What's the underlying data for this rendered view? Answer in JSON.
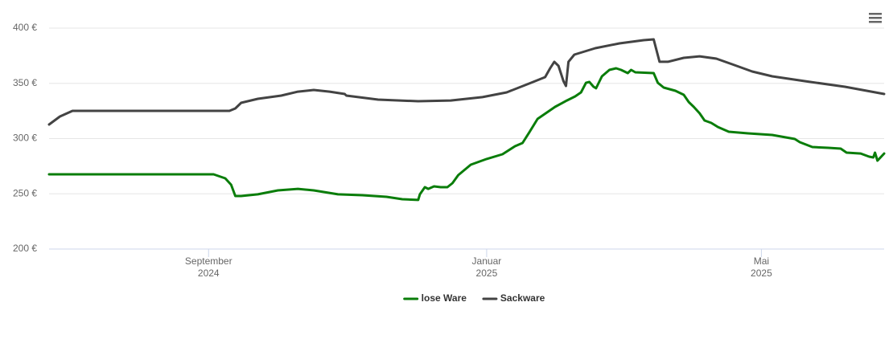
{
  "chart_data": {
    "type": "line",
    "xlim": [
      2024.476,
      2025.476
    ],
    "xticks": [
      {
        "value": 2024.667,
        "label": "September 2024"
      },
      {
        "value": 2025.0,
        "label": "Januar 2025"
      },
      {
        "value": 2025.329,
        "label": "Mai 2025"
      }
    ],
    "ylim": [
      200,
      400
    ],
    "yticks": [
      {
        "value": 200,
        "label": "200 €"
      },
      {
        "value": 250,
        "label": "250 €"
      },
      {
        "value": 300,
        "label": "300 €"
      },
      {
        "value": 350,
        "label": "350 €"
      },
      {
        "value": 400,
        "label": "400 €"
      }
    ],
    "grid": true,
    "legend": "bottom",
    "series": [
      {
        "name": "lose Ware",
        "color": "#0a7d0a",
        "x": [
          2024.476,
          2024.673,
          2024.687,
          2024.694,
          2024.699,
          2024.706,
          2024.726,
          2024.75,
          2024.774,
          2024.793,
          2024.822,
          2024.851,
          2024.88,
          2024.899,
          2024.918,
          2024.92,
          2024.926,
          2024.93,
          2024.937,
          2024.945,
          2024.953,
          2024.959,
          2024.966,
          2024.981,
          2025.0,
          2025.019,
          2025.034,
          2025.043,
          2025.051,
          2025.061,
          2025.082,
          2025.096,
          2025.106,
          2025.113,
          2025.119,
          2025.123,
          2025.128,
          2025.131,
          2025.138,
          2025.147,
          2025.155,
          2025.161,
          2025.169,
          2025.173,
          2025.178,
          2025.2,
          2025.205,
          2025.212,
          2025.226,
          2025.236,
          2025.242,
          2025.248,
          2025.255,
          2025.261,
          2025.269,
          2025.277,
          2025.29,
          2025.313,
          2025.342,
          2025.369,
          2025.375,
          2025.39,
          2025.409,
          2025.424,
          2025.431,
          2025.448,
          2025.458,
          2025.463,
          2025.465,
          2025.468,
          2025.476
        ],
        "values": [
          267.6,
          267.6,
          264,
          258.2,
          248,
          248,
          249.5,
          253.1,
          254.5,
          253.1,
          249.5,
          248.7,
          247.3,
          245.1,
          244.4,
          249.5,
          256,
          254.5,
          256.7,
          256,
          256,
          259.6,
          266.9,
          276.4,
          281.5,
          285.8,
          293.1,
          296,
          305.5,
          317.8,
          328.7,
          334.5,
          338.2,
          341.8,
          350.5,
          351.3,
          346.9,
          345.5,
          356.4,
          362.2,
          363.6,
          362.2,
          359.3,
          362.2,
          360,
          359.3,
          350.5,
          346.2,
          343.3,
          339.6,
          333.1,
          328.7,
          322.9,
          316.4,
          314.2,
          310.5,
          306.2,
          304.7,
          303.3,
          299.6,
          296.7,
          292.4,
          291.6,
          290.9,
          287.3,
          286.5,
          283.6,
          282.9,
          287.3,
          280,
          286.5
        ]
      },
      {
        "name": "Sackware",
        "color": "#434343",
        "x": [
          2024.476,
          2024.489,
          2024.504,
          2024.692,
          2024.699,
          2024.706,
          2024.726,
          2024.754,
          2024.774,
          2024.793,
          2024.812,
          2024.83,
          2024.832,
          2024.87,
          2024.918,
          2024.957,
          2024.995,
          2025.024,
          2025.053,
          2025.07,
          2025.076,
          2025.081,
          2025.086,
          2025.092,
          2025.095,
          2025.098,
          2025.105,
          2025.13,
          2025.159,
          2025.188,
          2025.2,
          2025.207,
          2025.217,
          2025.236,
          2025.255,
          2025.275,
          2025.294,
          2025.318,
          2025.342,
          2025.381,
          2025.429,
          2025.476
        ],
        "values": [
          312.7,
          320,
          325.1,
          325.1,
          327.3,
          332.4,
          336,
          338.9,
          342.5,
          344,
          342.5,
          340.4,
          338.9,
          335.3,
          333.8,
          334.5,
          337.5,
          341.8,
          350.5,
          355.6,
          363.6,
          369.5,
          365.8,
          352,
          347.6,
          369.5,
          376,
          381.8,
          386.2,
          389.1,
          389.8,
          369.5,
          369.5,
          373.1,
          374.5,
          372.4,
          367.3,
          360.7,
          356.4,
          352,
          346.9,
          340.4
        ]
      }
    ]
  }
}
